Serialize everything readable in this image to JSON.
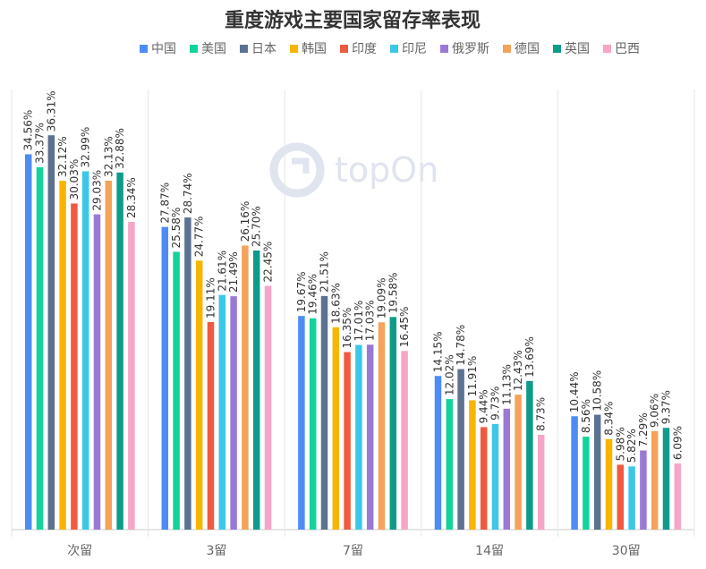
{
  "chart_data": {
    "type": "bar",
    "title": "重度游戏主要国家留存率表现",
    "categories": [
      "次留",
      "3留",
      "7留",
      "14留",
      "30留"
    ],
    "series": [
      {
        "name": "中国",
        "color": "#4d8cf5",
        "values": [
          34.56,
          27.87,
          19.67,
          14.15,
          10.44
        ]
      },
      {
        "name": "美国",
        "color": "#13d39b",
        "values": [
          33.37,
          25.58,
          19.46,
          12.02,
          8.56
        ]
      },
      {
        "name": "日本",
        "color": "#5b7290",
        "values": [
          36.31,
          28.74,
          21.51,
          14.78,
          10.58
        ]
      },
      {
        "name": "韩国",
        "color": "#f7b500",
        "values": [
          32.12,
          24.77,
          18.63,
          11.91,
          8.34
        ]
      },
      {
        "name": "印度",
        "color": "#f05a40",
        "values": [
          30.03,
          19.11,
          16.35,
          9.44,
          5.98
        ]
      },
      {
        "name": "印尼",
        "color": "#3cc7e8",
        "values": [
          32.99,
          21.61,
          17.01,
          9.73,
          5.82
        ]
      },
      {
        "name": "俄罗斯",
        "color": "#9a79d6",
        "values": [
          29.03,
          21.49,
          17.03,
          11.13,
          7.29
        ]
      },
      {
        "name": "德国",
        "color": "#f5a25a",
        "values": [
          32.13,
          26.16,
          19.09,
          12.43,
          9.06
        ]
      },
      {
        "name": "英国",
        "color": "#0f9b8a",
        "values": [
          32.88,
          25.7,
          19.58,
          13.69,
          9.37
        ]
      },
      {
        "name": "巴西",
        "color": "#f6a5c8",
        "values": [
          28.34,
          22.45,
          16.45,
          8.73,
          6.09
        ]
      }
    ],
    "data_label_suffix": "%",
    "ylim": [
      0,
      40
    ],
    "grid": false,
    "legend_position": "top-center"
  },
  "watermark": {
    "text": "topOn"
  }
}
